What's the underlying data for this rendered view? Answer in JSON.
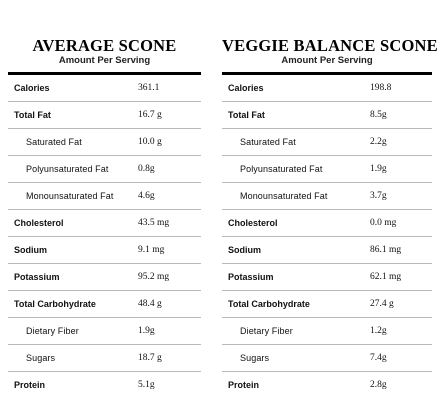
{
  "left": {
    "title": "AVERAGE SCONE",
    "subtitle": "Amount Per Serving",
    "rows": [
      {
        "label": "Calories",
        "value": "361.1"
      },
      {
        "label": "Total Fat",
        "value": "16.7 g"
      },
      {
        "label": "Saturated Fat",
        "value": "10.0 g"
      },
      {
        "label": "Polyunsaturated Fat",
        "value": "0.8g"
      },
      {
        "label": "Monounsaturated Fat",
        "value": "4.6g"
      },
      {
        "label": "Cholesterol",
        "value": "43.5 mg"
      },
      {
        "label": "Sodium",
        "value": "9.1 mg"
      },
      {
        "label": "Potassium",
        "value": "95.2 mg"
      },
      {
        "label": "Total Carbohydrate",
        "value": "48.4 g"
      },
      {
        "label": "Dietary Fiber",
        "value": "1.9g"
      },
      {
        "label": "Sugars",
        "value": "18.7 g"
      },
      {
        "label": "Protein",
        "value": "5.1g"
      }
    ]
  },
  "right": {
    "title": "VEGGIE BALANCE SCONE",
    "subtitle": "Amount Per Serving",
    "rows": [
      {
        "label": "Calories",
        "value": "198.8"
      },
      {
        "label": "Total Fat",
        "value": "8.5g"
      },
      {
        "label": "Saturated Fat",
        "value": "2.2g"
      },
      {
        "label": "Polyunsaturated Fat",
        "value": "1.9g"
      },
      {
        "label": "Monounsaturated Fat",
        "value": "3.7g"
      },
      {
        "label": "Cholesterol",
        "value": "0.0 mg"
      },
      {
        "label": "Sodium",
        "value": "86.1 mg"
      },
      {
        "label": "Potassium",
        "value": "62.1 mg"
      },
      {
        "label": "Total Carbohydrate",
        "value": "27.4 g"
      },
      {
        "label": "Dietary Fiber",
        "value": "1.2g"
      },
      {
        "label": "Sugars",
        "value": "7.4g"
      },
      {
        "label": "Protein",
        "value": "2.8g"
      }
    ]
  }
}
